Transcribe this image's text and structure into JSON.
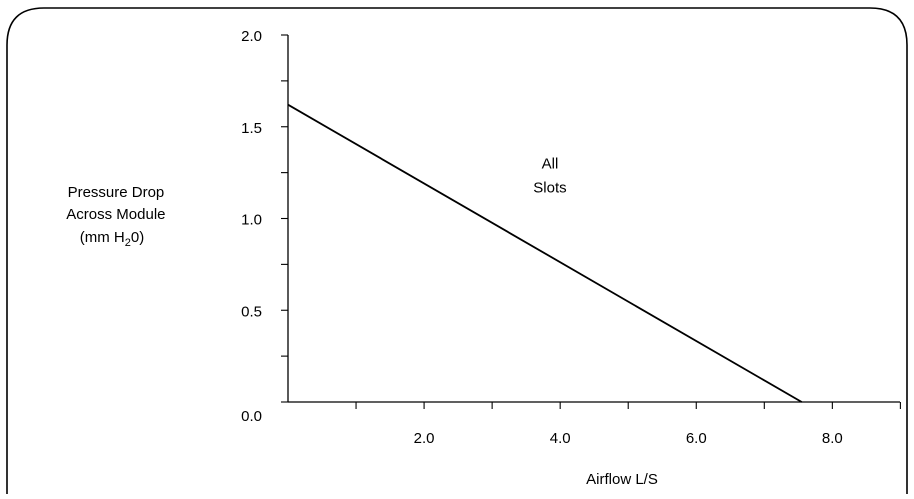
{
  "chart_data": {
    "type": "line",
    "title": "",
    "xlabel": "Airflow L/S",
    "ylabel_lines": [
      "Pressure Drop",
      "Across Module",
      "(mm H",
      "2",
      "0)"
    ],
    "xlim": [
      0,
      9.2
    ],
    "ylim": [
      0,
      2.0
    ],
    "x_ticks": [
      {
        "value": 1.0,
        "label": ""
      },
      {
        "value": 2.0,
        "label": "2.0"
      },
      {
        "value": 3.0,
        "label": ""
      },
      {
        "value": 4.0,
        "label": "4.0"
      },
      {
        "value": 5.0,
        "label": ""
      },
      {
        "value": 6.0,
        "label": "6.0"
      },
      {
        "value": 7.0,
        "label": ""
      },
      {
        "value": 8.0,
        "label": "8.0"
      },
      {
        "value": 9.0,
        "label": ""
      }
    ],
    "y_ticks": [
      {
        "value": 0.0,
        "label": "0.0"
      },
      {
        "value": 0.25,
        "label": ""
      },
      {
        "value": 0.5,
        "label": "0.5"
      },
      {
        "value": 0.75,
        "label": ""
      },
      {
        "value": 1.0,
        "label": "1.0"
      },
      {
        "value": 1.25,
        "label": ""
      },
      {
        "value": 1.5,
        "label": "1.5"
      },
      {
        "value": 1.75,
        "label": ""
      },
      {
        "value": 2.0,
        "label": "2.0"
      }
    ],
    "grid": false,
    "series": [
      {
        "name": "",
        "color": "#000000",
        "points": [
          {
            "x": 0.0,
            "y": 1.62
          },
          {
            "x": 7.55,
            "y": 0.0
          }
        ]
      }
    ],
    "annotations": [
      {
        "lines": [
          "All",
          "Slots"
        ],
        "x": 3.85,
        "y": 1.12
      }
    ]
  }
}
